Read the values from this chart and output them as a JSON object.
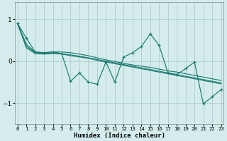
{
  "xlabel": "Humidex (Indice chaleur)",
  "background_color": "#d4ecec",
  "grid_color": "#b0cccc",
  "line_color": "#1a7a6e",
  "x_values": [
    0,
    1,
    2,
    3,
    4,
    5,
    6,
    7,
    8,
    9,
    10,
    11,
    12,
    13,
    14,
    15,
    16,
    17,
    18,
    19,
    20,
    21,
    22,
    23
  ],
  "series_jagged": [
    0.9,
    0.55,
    0.22,
    0.2,
    0.22,
    0.18,
    -0.48,
    -0.28,
    -0.5,
    -0.55,
    -0.02,
    -0.5,
    0.1,
    0.2,
    0.35,
    0.65,
    0.38,
    -0.28,
    -0.32,
    -0.18,
    -0.02,
    -1.02,
    -0.85,
    -0.68
  ],
  "series_trend1": [
    0.9,
    0.4,
    0.22,
    0.2,
    0.22,
    0.22,
    0.2,
    0.17,
    0.13,
    0.08,
    0.03,
    -0.01,
    -0.05,
    -0.09,
    -0.12,
    -0.15,
    -0.19,
    -0.23,
    -0.26,
    -0.3,
    -0.34,
    -0.38,
    -0.42,
    -0.46
  ],
  "series_trend2": [
    0.9,
    0.36,
    0.2,
    0.18,
    0.2,
    0.18,
    0.15,
    0.12,
    0.08,
    0.04,
    0.0,
    -0.04,
    -0.08,
    -0.12,
    -0.16,
    -0.2,
    -0.24,
    -0.28,
    -0.32,
    -0.36,
    -0.4,
    -0.44,
    -0.48,
    -0.52
  ],
  "series_trend3": [
    0.9,
    0.32,
    0.18,
    0.17,
    0.18,
    0.17,
    0.13,
    0.1,
    0.07,
    0.02,
    -0.02,
    -0.06,
    -0.1,
    -0.14,
    -0.18,
    -0.22,
    -0.26,
    -0.3,
    -0.34,
    -0.38,
    -0.42,
    -0.46,
    -0.5,
    -0.54
  ],
  "ylim": [
    -1.5,
    1.4
  ],
  "yticks": [
    -1,
    0,
    1
  ],
  "xlim": [
    -0.3,
    23.3
  ]
}
